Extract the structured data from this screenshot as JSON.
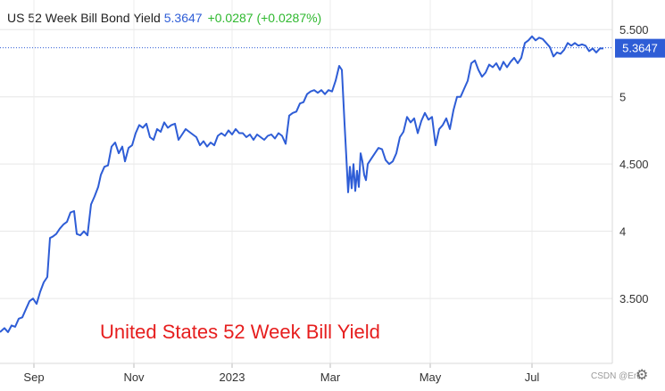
{
  "header": {
    "title": "US 52 Week Bill Bond Yield",
    "value": "5.3647",
    "change": "+0.0287 (+0.0287%)"
  },
  "current_badge": "5.3647",
  "annotation": "United States 52 Week Bill Yield",
  "watermark": "CSDN @Eric",
  "icons": {
    "settings": "gear-icon"
  },
  "colors": {
    "line": "#2e5dd6",
    "badge": "#2e5dd6",
    "change": "#2eb82e",
    "annotation": "#e61e1e"
  },
  "chart_data": {
    "type": "line",
    "title": "US 52 Week Bill Bond Yield",
    "xlabel": "",
    "ylabel": "",
    "grid": true,
    "ylim": [
      3.15,
      5.72
    ],
    "x_ticks": [
      {
        "label": "Sep",
        "x": 38
      },
      {
        "label": "Nov",
        "x": 150
      },
      {
        "label": "2023",
        "x": 260
      },
      {
        "label": "Mar",
        "x": 370
      },
      {
        "label": "May",
        "x": 482
      },
      {
        "label": "Jul",
        "x": 596
      }
    ],
    "y_ticks": [
      {
        "label": "3.500",
        "value": 3.5
      },
      {
        "label": "4",
        "value": 4.0
      },
      {
        "label": "4.500",
        "value": 4.5
      },
      {
        "label": "5",
        "value": 5.0
      },
      {
        "label": "5.500",
        "value": 5.5
      }
    ],
    "x_range": [
      0,
      700
    ],
    "current_value": 5.3647,
    "series": [
      {
        "values": [
          [
            0,
            3.25
          ],
          [
            5,
            3.28
          ],
          [
            9,
            3.25
          ],
          [
            13,
            3.3
          ],
          [
            17,
            3.29
          ],
          [
            21,
            3.35
          ],
          [
            25,
            3.36
          ],
          [
            29,
            3.42
          ],
          [
            33,
            3.48
          ],
          [
            37,
            3.5
          ],
          [
            41,
            3.46
          ],
          [
            45,
            3.55
          ],
          [
            49,
            3.62
          ],
          [
            53,
            3.66
          ],
          [
            56,
            3.95
          ],
          [
            59,
            3.96
          ],
          [
            63,
            3.98
          ],
          [
            67,
            4.02
          ],
          [
            71,
            4.05
          ],
          [
            75,
            4.07
          ],
          [
            79,
            4.14
          ],
          [
            83,
            4.15
          ],
          [
            86,
            3.98
          ],
          [
            90,
            3.97
          ],
          [
            94,
            4.0
          ],
          [
            98,
            3.97
          ],
          [
            102,
            4.2
          ],
          [
            106,
            4.26
          ],
          [
            110,
            4.33
          ],
          [
            113,
            4.42
          ],
          [
            117,
            4.48
          ],
          [
            121,
            4.49
          ],
          [
            125,
            4.63
          ],
          [
            129,
            4.66
          ],
          [
            133,
            4.58
          ],
          [
            137,
            4.63
          ],
          [
            140,
            4.52
          ],
          [
            144,
            4.62
          ],
          [
            148,
            4.64
          ],
          [
            152,
            4.73
          ],
          [
            156,
            4.79
          ],
          [
            160,
            4.77
          ],
          [
            164,
            4.8
          ],
          [
            168,
            4.7
          ],
          [
            172,
            4.68
          ],
          [
            176,
            4.76
          ],
          [
            180,
            4.74
          ],
          [
            184,
            4.81
          ],
          [
            188,
            4.77
          ],
          [
            192,
            4.79
          ],
          [
            196,
            4.8
          ],
          [
            200,
            4.68
          ],
          [
            204,
            4.72
          ],
          [
            208,
            4.76
          ],
          [
            212,
            4.74
          ],
          [
            216,
            4.72
          ],
          [
            220,
            4.7
          ],
          [
            224,
            4.64
          ],
          [
            228,
            4.67
          ],
          [
            232,
            4.63
          ],
          [
            236,
            4.66
          ],
          [
            240,
            4.64
          ],
          [
            244,
            4.71
          ],
          [
            248,
            4.73
          ],
          [
            252,
            4.71
          ],
          [
            256,
            4.75
          ],
          [
            260,
            4.72
          ],
          [
            264,
            4.76
          ],
          [
            268,
            4.73
          ],
          [
            272,
            4.73
          ],
          [
            276,
            4.7
          ],
          [
            280,
            4.72
          ],
          [
            284,
            4.68
          ],
          [
            288,
            4.72
          ],
          [
            292,
            4.7
          ],
          [
            296,
            4.68
          ],
          [
            300,
            4.71
          ],
          [
            304,
            4.72
          ],
          [
            308,
            4.69
          ],
          [
            312,
            4.73
          ],
          [
            316,
            4.71
          ],
          [
            320,
            4.65
          ],
          [
            324,
            4.86
          ],
          [
            328,
            4.88
          ],
          [
            332,
            4.89
          ],
          [
            336,
            4.95
          ],
          [
            340,
            4.96
          ],
          [
            344,
            5.02
          ],
          [
            348,
            5.04
          ],
          [
            352,
            5.05
          ],
          [
            356,
            5.03
          ],
          [
            360,
            5.05
          ],
          [
            364,
            5.02
          ],
          [
            368,
            5.05
          ],
          [
            372,
            5.04
          ],
          [
            376,
            5.12
          ],
          [
            380,
            5.23
          ],
          [
            383,
            5.2
          ],
          [
            386,
            4.8
          ],
          [
            388,
            4.55
          ],
          [
            390,
            4.29
          ],
          [
            392,
            4.48
          ],
          [
            394,
            4.32
          ],
          [
            396,
            4.5
          ],
          [
            398,
            4.3
          ],
          [
            400,
            4.45
          ],
          [
            402,
            4.33
          ],
          [
            404,
            4.58
          ],
          [
            406,
            4.52
          ],
          [
            408,
            4.42
          ],
          [
            410,
            4.38
          ],
          [
            412,
            4.5
          ],
          [
            416,
            4.54
          ],
          [
            420,
            4.58
          ],
          [
            424,
            4.62
          ],
          [
            428,
            4.61
          ],
          [
            432,
            4.53
          ],
          [
            436,
            4.5
          ],
          [
            440,
            4.52
          ],
          [
            444,
            4.58
          ],
          [
            448,
            4.7
          ],
          [
            452,
            4.74
          ],
          [
            456,
            4.85
          ],
          [
            460,
            4.81
          ],
          [
            464,
            4.84
          ],
          [
            468,
            4.73
          ],
          [
            472,
            4.82
          ],
          [
            476,
            4.88
          ],
          [
            480,
            4.83
          ],
          [
            484,
            4.85
          ],
          [
            488,
            4.64
          ],
          [
            492,
            4.76
          ],
          [
            496,
            4.79
          ],
          [
            500,
            4.84
          ],
          [
            504,
            4.76
          ],
          [
            508,
            4.9
          ],
          [
            512,
            5.0
          ],
          [
            516,
            5.0
          ],
          [
            520,
            5.06
          ],
          [
            524,
            5.12
          ],
          [
            528,
            5.25
          ],
          [
            532,
            5.27
          ],
          [
            536,
            5.2
          ],
          [
            540,
            5.15
          ],
          [
            544,
            5.18
          ],
          [
            548,
            5.24
          ],
          [
            552,
            5.22
          ],
          [
            556,
            5.25
          ],
          [
            560,
            5.2
          ],
          [
            564,
            5.26
          ],
          [
            568,
            5.22
          ],
          [
            572,
            5.26
          ],
          [
            576,
            5.29
          ],
          [
            580,
            5.25
          ],
          [
            584,
            5.29
          ],
          [
            588,
            5.4
          ],
          [
            592,
            5.42
          ],
          [
            596,
            5.45
          ],
          [
            600,
            5.42
          ],
          [
            604,
            5.44
          ],
          [
            608,
            5.43
          ],
          [
            612,
            5.4
          ],
          [
            616,
            5.37
          ],
          [
            620,
            5.3
          ],
          [
            624,
            5.33
          ],
          [
            628,
            5.32
          ],
          [
            632,
            5.35
          ],
          [
            636,
            5.4
          ],
          [
            640,
            5.38
          ],
          [
            644,
            5.4
          ],
          [
            648,
            5.38
          ],
          [
            652,
            5.39
          ],
          [
            656,
            5.38
          ],
          [
            660,
            5.34
          ],
          [
            664,
            5.36
          ],
          [
            668,
            5.33
          ],
          [
            672,
            5.36
          ],
          [
            676,
            5.36
          ]
        ]
      }
    ]
  }
}
